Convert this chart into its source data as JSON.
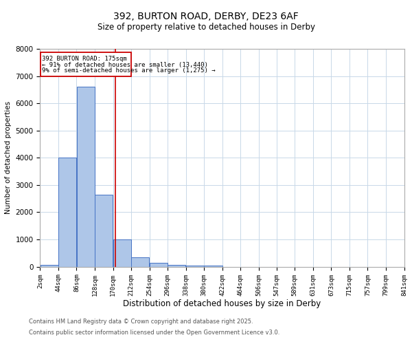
{
  "title_line1": "392, BURTON ROAD, DERBY, DE23 6AF",
  "title_line2": "Size of property relative to detached houses in Derby",
  "xlabel": "Distribution of detached houses by size in Derby",
  "ylabel": "Number of detached properties",
  "footnote1": "Contains HM Land Registry data © Crown copyright and database right 2025.",
  "footnote2": "Contains public sector information licensed under the Open Government Licence v3.0.",
  "annotation_line1": "392 BURTON ROAD: 175sqm",
  "annotation_line2": "← 91% of detached houses are smaller (13,440)",
  "annotation_line3": "9% of semi-detached houses are larger (1,275) →",
  "property_size": 175,
  "bin_starts": [
    2,
    44,
    86,
    128,
    170,
    212,
    254,
    296,
    338,
    380,
    422,
    464,
    506,
    547,
    589,
    631,
    673,
    715,
    757,
    799,
    841
  ],
  "bin_width": 42,
  "bar_heights": [
    75,
    4000,
    6620,
    2650,
    1000,
    330,
    130,
    75,
    50,
    50,
    0,
    0,
    0,
    0,
    0,
    0,
    0,
    0,
    0,
    0
  ],
  "bar_color": "#aec6e8",
  "bar_edge_color": "#4472c4",
  "red_line_color": "#cc0000",
  "annotation_box_color": "#cc0000",
  "background_color": "#ffffff",
  "grid_color": "#c8d8e8",
  "ylim": [
    0,
    8000
  ],
  "yticks": [
    0,
    1000,
    2000,
    3000,
    4000,
    5000,
    6000,
    7000,
    8000
  ],
  "tick_labels": [
    "2sqm",
    "44sqm",
    "86sqm",
    "128sqm",
    "170sqm",
    "212sqm",
    "254sqm",
    "296sqm",
    "338sqm",
    "380sqm",
    "422sqm",
    "464sqm",
    "506sqm",
    "547sqm",
    "589sqm",
    "631sqm",
    "673sqm",
    "715sqm",
    "757sqm",
    "799sqm",
    "841sqm"
  ]
}
